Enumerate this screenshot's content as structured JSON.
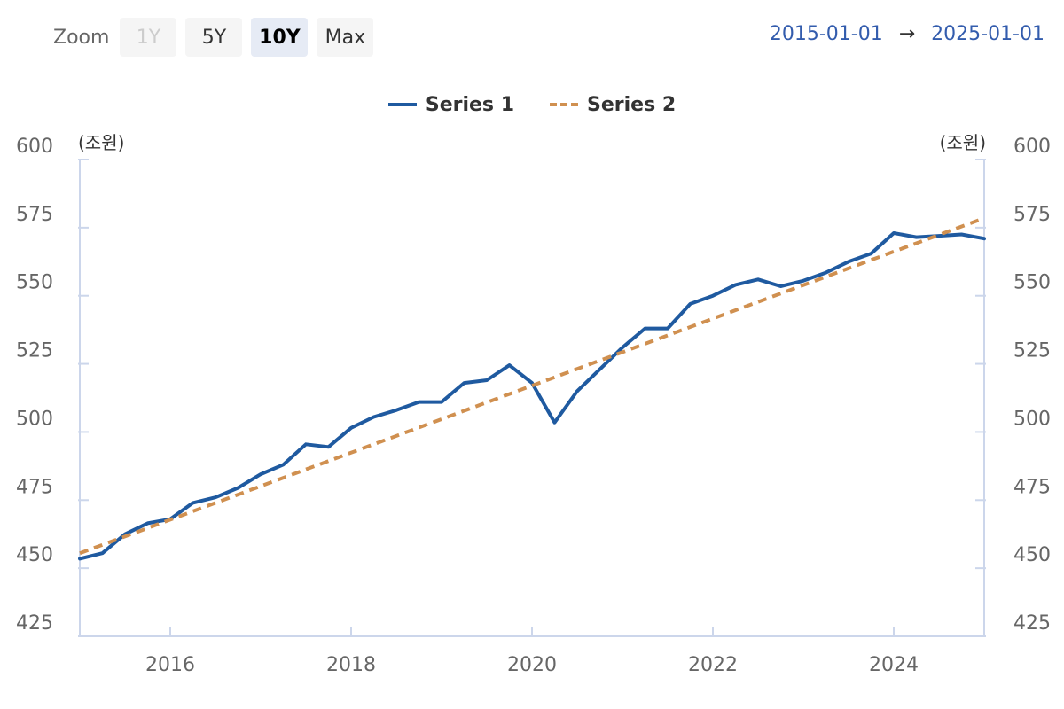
{
  "toolbar": {
    "zoom_label": "Zoom",
    "buttons": [
      {
        "label": "1Y",
        "state": "disabled"
      },
      {
        "label": "5Y",
        "state": "normal"
      },
      {
        "label": "10Y",
        "state": "active"
      },
      {
        "label": "Max",
        "state": "normal"
      }
    ],
    "range_from": "2015-01-01",
    "range_arrow": "→",
    "range_to": "2025-01-01"
  },
  "legend": {
    "series1": "Series 1",
    "series2": "Series 2"
  },
  "colors": {
    "series1": "#1f5aa0",
    "series2": "#d09050",
    "axis_text": "#666666",
    "axis_line": "#ccd6eb"
  },
  "chart_data": {
    "type": "line",
    "yunit_left": "(조원)",
    "yunit_right": "(조원)",
    "ylim": [
      425,
      600
    ],
    "yticks": [
      425,
      450,
      475,
      500,
      525,
      550,
      575,
      600
    ],
    "xlim": [
      2015.0,
      2025.0
    ],
    "xticks": [
      2016,
      2018,
      2020,
      2022,
      2024
    ],
    "grid": false,
    "legend_position": "top-center",
    "series": [
      {
        "name": "Series 1",
        "style": "solid",
        "x": [
          2015.0,
          2015.25,
          2015.5,
          2015.75,
          2016.0,
          2016.25,
          2016.5,
          2016.75,
          2017.0,
          2017.25,
          2017.5,
          2017.75,
          2018.0,
          2018.25,
          2018.5,
          2018.75,
          2019.0,
          2019.25,
          2019.5,
          2019.75,
          2020.0,
          2020.25,
          2020.5,
          2020.75,
          2021.0,
          2021.25,
          2021.5,
          2021.75,
          2022.0,
          2022.25,
          2022.5,
          2022.75,
          2023.0,
          2023.25,
          2023.5,
          2023.75,
          2024.0,
          2024.25,
          2024.5,
          2024.75,
          2025.0
        ],
        "y": [
          453.5,
          455.5,
          462.5,
          466.5,
          468,
          474,
          476,
          479.5,
          484.5,
          488,
          495.5,
          494.5,
          501.5,
          505.5,
          508,
          511,
          511,
          518,
          519,
          524.5,
          518,
          503.5,
          515,
          523,
          531,
          538,
          538,
          547,
          550,
          554,
          556,
          553.5,
          555.5,
          558.5,
          562.5,
          565.5,
          573,
          571.5,
          572,
          572.5,
          571
        ]
      },
      {
        "name": "Series 2",
        "style": "dashed",
        "x": [
          2015.0,
          2025.0
        ],
        "y": [
          455.5,
          578.5
        ]
      }
    ]
  }
}
